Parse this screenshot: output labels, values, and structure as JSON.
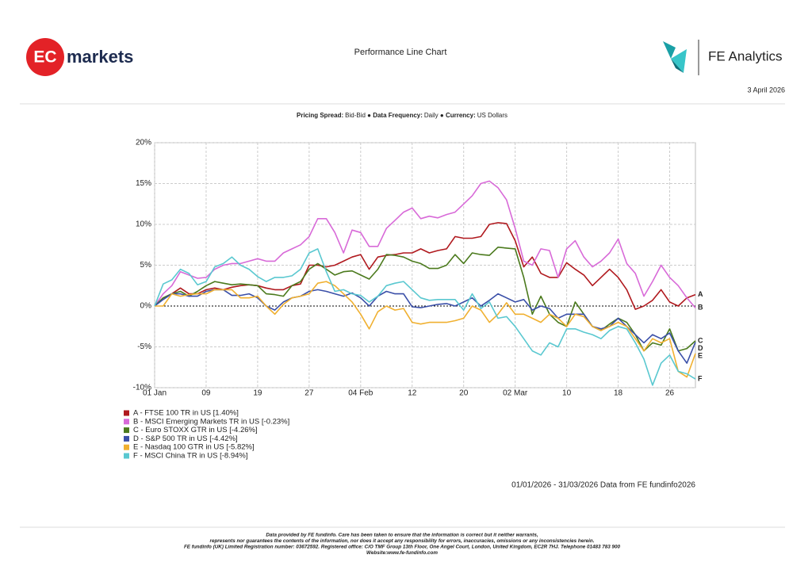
{
  "header": {
    "brand_left_badge": "EC",
    "brand_left_word": "markets",
    "title": "Performance Line Chart",
    "brand_right": "FE Analytics",
    "date": "3 April 2026",
    "settings": [
      {
        "key": "Pricing Spread:",
        "value": "Bid-Bid"
      },
      {
        "key": "Data Frequency:",
        "value": "Daily"
      },
      {
        "key": "Currency:",
        "value": "US Dollars"
      }
    ]
  },
  "chart_data": {
    "type": "line",
    "categories": [
      "01 Jan",
      null,
      null,
      null,
      null,
      null,
      "09",
      null,
      null,
      null,
      null,
      null,
      "19",
      null,
      null,
      null,
      null,
      null,
      "27",
      null,
      null,
      null,
      null,
      null,
      "04 Feb",
      null,
      null,
      null,
      null,
      null,
      "12",
      null,
      null,
      null,
      null,
      null,
      "20",
      null,
      null,
      null,
      null,
      null,
      "02 Mar",
      null,
      null,
      null,
      null,
      null,
      "10",
      null,
      null,
      null,
      null,
      null,
      "18",
      null,
      null,
      null,
      null,
      null,
      "26",
      null,
      null,
      null
    ],
    "ylim": [
      -10,
      20
    ],
    "yticks": [
      {
        "value": -10,
        "label": "-10%"
      },
      {
        "value": -5,
        "label": "-5%"
      },
      {
        "value": 0,
        "label": "0%"
      },
      {
        "value": 5,
        "label": "5%"
      },
      {
        "value": 10,
        "label": "10%"
      },
      {
        "value": 15,
        "label": "15%"
      },
      {
        "value": 20,
        "label": "20%"
      }
    ],
    "grid": true,
    "series": [
      {
        "name": "A - FTSE 100 TR in US [1.40%]",
        "tag": "A",
        "color": "#b0191e",
        "values": [
          0,
          1,
          1.5,
          2.2,
          1.5,
          1.5,
          2,
          2.2,
          2,
          2.3,
          2.5,
          2.6,
          2.5,
          2.2,
          2,
          2,
          2.5,
          2.7,
          5,
          5,
          4.8,
          5,
          5.5,
          6,
          6.3,
          4.5,
          6,
          6.2,
          6.3,
          6.5,
          6.5,
          7,
          6.5,
          6.8,
          7,
          8.5,
          8.3,
          8.3,
          8.5,
          10,
          10.2,
          10.1,
          8,
          4.8,
          6,
          4,
          3.5,
          3.5,
          5.3,
          4.5,
          3.8,
          2.5,
          3.5,
          4.5,
          3.5,
          2,
          -0.4,
          0,
          0.7,
          2,
          0.5,
          0,
          1,
          1.4
        ]
      },
      {
        "name": "B - MSCI Emerging Markets TR in US [-0.23%]",
        "tag": "B",
        "color": "#d86ad8",
        "values": [
          0,
          1.5,
          2.5,
          4.2,
          3.8,
          3.4,
          3.5,
          4.5,
          5,
          5.2,
          5.2,
          5.5,
          5.8,
          5.5,
          5.5,
          6.5,
          7,
          7.5,
          8.5,
          10.7,
          10.7,
          9,
          6.5,
          9.3,
          9,
          7.3,
          7.3,
          9.5,
          10.5,
          11.5,
          12,
          10.7,
          11,
          10.8,
          11.2,
          11.5,
          12.5,
          13.5,
          15,
          15.3,
          14.5,
          13,
          9.5,
          5.5,
          5,
          7,
          6.8,
          3.5,
          7,
          8,
          6,
          4.8,
          5.5,
          6.5,
          8.2,
          5.2,
          4,
          1.2,
          3,
          5,
          3.5,
          2.5,
          1,
          -0.23
        ]
      },
      {
        "name": "C - Euro STOXX GTR in US [-4.26%]",
        "tag": "C",
        "color": "#4b7a1d",
        "values": [
          0,
          1,
          1.5,
          1.8,
          1.2,
          1.8,
          2.5,
          3,
          2.8,
          2.6,
          2.7,
          2.6,
          2.5,
          1.5,
          1.4,
          1.2,
          2.5,
          3,
          4.5,
          5.2,
          4.5,
          3.8,
          4.2,
          4.3,
          3.8,
          3.3,
          4.5,
          6.3,
          6.2,
          6,
          5.5,
          5.2,
          4.6,
          4.6,
          5,
          6.3,
          5.2,
          6.5,
          6.3,
          6.2,
          7.2,
          7.1,
          7,
          3.5,
          -1,
          1.2,
          -1,
          -2,
          -2.5,
          0.5,
          -1,
          -2.5,
          -3,
          -2.2,
          -1.5,
          -2,
          -3.5,
          -5.5,
          -4.5,
          -4.8,
          -2.8,
          -5.5,
          -5.2,
          -4.26
        ]
      },
      {
        "name": "D - S&P 500 TR in US [-4.42%]",
        "tag": "D",
        "color": "#3a4fa8",
        "values": [
          0,
          0.8,
          1.5,
          1.5,
          1.2,
          1.2,
          1.8,
          2,
          2,
          1.3,
          1.3,
          1.5,
          1,
          0,
          -0.5,
          0.5,
          1,
          1.2,
          1.8,
          2,
          1.8,
          1.5,
          1.2,
          1.6,
          1,
          0,
          1.2,
          1.8,
          1.5,
          1.5,
          -0.1,
          -0.2,
          0,
          0.2,
          0.3,
          0,
          0.5,
          1,
          0,
          0.7,
          1.5,
          1,
          0.5,
          0.8,
          -0.5,
          0,
          -0.3,
          -1.5,
          -1,
          -1,
          -1,
          -2.5,
          -2.8,
          -2.5,
          -1.5,
          -2.5,
          -3.5,
          -4.5,
          -3.5,
          -4,
          -3.3,
          -5.5,
          -7,
          -4.42
        ]
      },
      {
        "name": "E - Nasdaq 100 GTR in US [-5.82%]",
        "tag": "E",
        "color": "#f0b030",
        "values": [
          0,
          0,
          1.5,
          1.2,
          1.4,
          1.5,
          1.5,
          2,
          2,
          2,
          1,
          1,
          1.2,
          0,
          -1,
          0.2,
          1,
          1.2,
          1.5,
          2.8,
          3,
          2.5,
          1.5,
          0.5,
          -1,
          -2.8,
          -0.7,
          0,
          -0.5,
          -0.3,
          -2,
          -2.2,
          -2,
          -2,
          -2,
          -1.8,
          -1.5,
          0,
          -0.5,
          -2,
          -1,
          0.4,
          -1,
          -1,
          -1.5,
          -2,
          -1,
          -1.5,
          -2.5,
          -1,
          -1.3,
          -2.5,
          -3,
          -2.5,
          -2,
          -2.5,
          -4,
          -5.5,
          -4,
          -4.5,
          -4,
          -8,
          -8.7,
          -5.82
        ]
      },
      {
        "name": "F - MSCI China TR in US [-8.94%]",
        "tag": "F",
        "color": "#5ac8d0",
        "values": [
          0,
          2.7,
          3.2,
          4.5,
          4,
          2.6,
          3,
          4.8,
          5.2,
          6,
          5,
          4.5,
          3.6,
          3,
          3.5,
          3.5,
          3.7,
          4.5,
          6.5,
          7,
          4.2,
          1.8,
          2,
          1.5,
          1.3,
          0.5,
          1.2,
          2.5,
          2.8,
          3,
          2,
          1,
          0.7,
          0.8,
          0.8,
          0.8,
          -0.5,
          1.5,
          -0.3,
          0.5,
          -1.5,
          -1.3,
          -2.5,
          -4,
          -5.5,
          -6,
          -4.5,
          -5,
          -2.8,
          -2.8,
          -3.2,
          -3.5,
          -4,
          -3,
          -2.5,
          -2.8,
          -4.5,
          -6.5,
          -9.7,
          -7,
          -6,
          -8,
          -8.3,
          -8.94
        ]
      }
    ],
    "source": "01/01/2026 - 31/03/2026 Data from FE fundinfo2026"
  },
  "footer": {
    "lines": [
      "Data provided by FE fundinfo. Care has been taken to ensure that the information is correct but it neither warrants,",
      "represents nor guarantees the contents of the information, nor does it accept any responsibility for errors, inaccuracies, omissions or any inconsistencies herein.",
      "FE fundinfo (UK) Limited Registration number: 03672592. Registered office: C/O TMF Group 13th Floor, One Angel Court, London, United Kingdom, EC2R 7HJ. Telephone 01483 783 900",
      "Website:www.fe-fundinfo.com"
    ]
  }
}
